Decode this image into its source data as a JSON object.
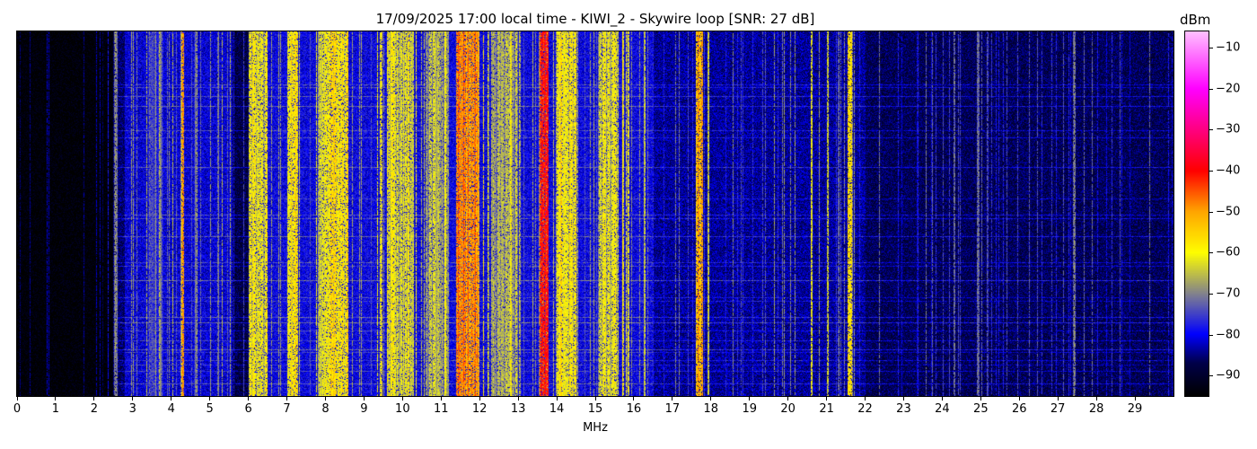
{
  "chart_data": {
    "type": "heatmap",
    "title": "17/09/2025 17:00 local time - KIWI_2 - Skywire loop [SNR: 27 dB]",
    "xlabel": "MHz",
    "xlim": [
      0,
      30
    ],
    "xticks": [
      0,
      1,
      2,
      3,
      4,
      5,
      6,
      7,
      8,
      9,
      10,
      11,
      12,
      13,
      14,
      15,
      16,
      17,
      18,
      19,
      20,
      21,
      22,
      23,
      24,
      25,
      26,
      27,
      28,
      29
    ],
    "colorbar": {
      "label": "dBm",
      "range": [
        -95,
        -6
      ],
      "ticks": [
        -10,
        -20,
        -30,
        -40,
        -50,
        -60,
        -70,
        -80,
        -90
      ],
      "colormap": [
        {
          "v": -95,
          "c": "#000000"
        },
        {
          "v": -87,
          "c": "#00004a"
        },
        {
          "v": -80,
          "c": "#0000ff"
        },
        {
          "v": -71,
          "c": "#777799"
        },
        {
          "v": -60,
          "c": "#ffff00"
        },
        {
          "v": -50,
          "c": "#ffa500"
        },
        {
          "v": -40,
          "c": "#ff0000"
        },
        {
          "v": -30,
          "c": "#ff0080"
        },
        {
          "v": -20,
          "c": "#ff00ff"
        },
        {
          "v": -6,
          "c": "#ffc0ff"
        }
      ]
    },
    "noise_floor": [
      {
        "from": 0,
        "to": 2.5,
        "level": -95
      },
      {
        "from": 2.5,
        "to": 2.8,
        "level": -86
      },
      {
        "from": 2.8,
        "to": 5.6,
        "level": -81
      },
      {
        "from": 5.6,
        "to": 6.0,
        "level": -88
      },
      {
        "from": 6.0,
        "to": 16.5,
        "level": -80
      },
      {
        "from": 16.5,
        "to": 22.0,
        "level": -84
      },
      {
        "from": 22.0,
        "to": 30,
        "level": -87
      }
    ],
    "signals": [
      {
        "from": 2.55,
        "to": 2.6,
        "level": -72
      },
      {
        "from": 3.4,
        "to": 3.8,
        "level": -76
      },
      {
        "from": 4.27,
        "to": 4.33,
        "level": -52
      },
      {
        "from": 4.6,
        "to": 4.65,
        "level": -74
      },
      {
        "from": 5.2,
        "to": 5.25,
        "level": -68
      },
      {
        "from": 6.0,
        "to": 6.5,
        "level": -62
      },
      {
        "from": 7.0,
        "to": 7.3,
        "level": -58
      },
      {
        "from": 7.8,
        "to": 8.1,
        "level": -62
      },
      {
        "from": 8.1,
        "to": 8.6,
        "level": -59
      },
      {
        "from": 9.6,
        "to": 10.3,
        "level": -62
      },
      {
        "from": 10.6,
        "to": 11.2,
        "level": -66
      },
      {
        "from": 11.4,
        "to": 12.0,
        "level": -48
      },
      {
        "from": 12.3,
        "to": 13.0,
        "level": -68
      },
      {
        "from": 13.55,
        "to": 13.8,
        "level": -42
      },
      {
        "from": 14.0,
        "to": 14.5,
        "level": -60
      },
      {
        "from": 15.1,
        "to": 15.6,
        "level": -62
      },
      {
        "from": 15.7,
        "to": 15.75,
        "level": -58
      },
      {
        "from": 16.25,
        "to": 16.3,
        "level": -66
      },
      {
        "from": 17.6,
        "to": 17.8,
        "level": -50
      },
      {
        "from": 17.9,
        "to": 17.95,
        "level": -60
      },
      {
        "from": 20.58,
        "to": 20.63,
        "level": -60
      },
      {
        "from": 21.0,
        "to": 21.05,
        "level": -62
      },
      {
        "from": 21.55,
        "to": 21.65,
        "level": -58
      },
      {
        "from": 24.9,
        "to": 24.95,
        "level": -74
      },
      {
        "from": 27.4,
        "to": 27.43,
        "level": -72
      }
    ]
  }
}
